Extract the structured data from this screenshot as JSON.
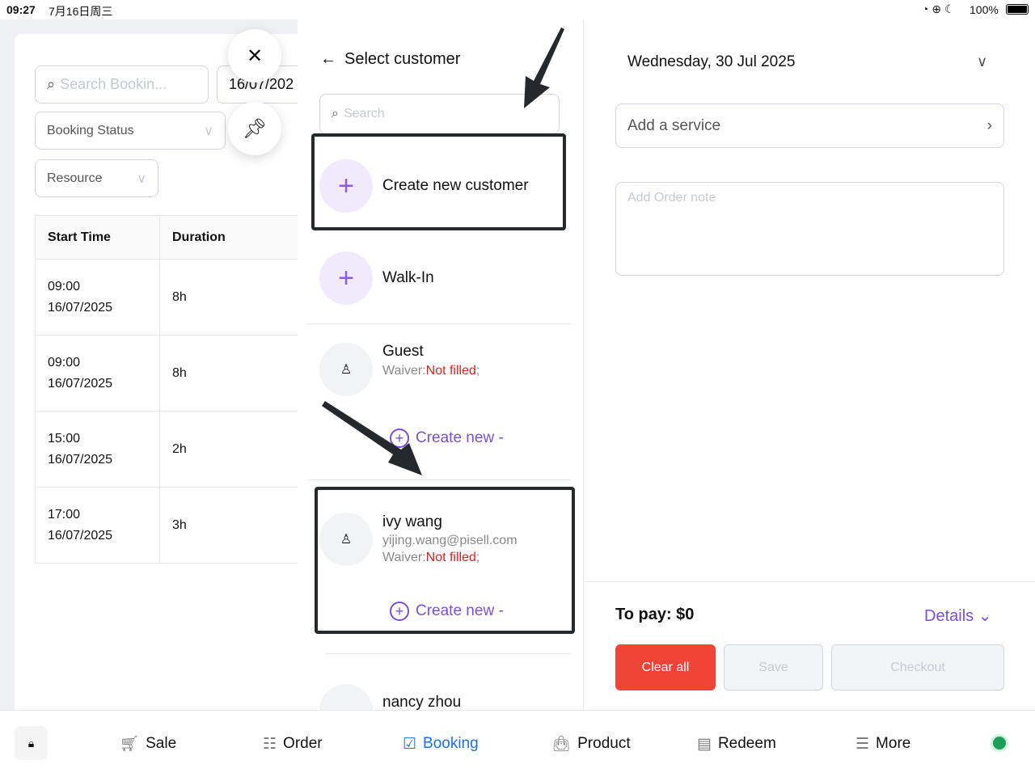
{
  "status_bar": {
    "time": "09:27",
    "date": "7月16日周三",
    "battery": "100%"
  },
  "bookings": {
    "search_placeholder": "Search Bookin...",
    "date_value": "16/07/202",
    "booking_status": "Booking Status",
    "resource": "Resource",
    "columns": [
      "Start Time",
      "Duration"
    ],
    "rows": [
      {
        "time": "09:00",
        "date": "16/07/2025",
        "duration": "8h"
      },
      {
        "time": "09:00",
        "date": "16/07/2025",
        "duration": "8h"
      },
      {
        "time": "15:00",
        "date": "16/07/2025",
        "duration": "2h"
      },
      {
        "time": "17:00",
        "date": "16/07/2025",
        "duration": "3h"
      }
    ]
  },
  "customer": {
    "title": "Select customer",
    "search_placeholder": "Search",
    "create_new_customer": "Create new customer",
    "walk_in": "Walk-In",
    "list": [
      {
        "name": "Guest",
        "email": "",
        "waiver_label": "Waiver:",
        "waiver_status": "Not filled",
        "create": "Create new -"
      },
      {
        "name": "ivy wang",
        "email": "yijing.wang@pisell.com",
        "waiver_label": "Waiver:",
        "waiver_status": "Not filled",
        "create": "Create new -"
      },
      {
        "name": "nancy zhou"
      }
    ]
  },
  "order": {
    "date": "Wednesday, 30 Jul 2025",
    "add_service": "Add a service",
    "note_placeholder": "Add Order note",
    "to_pay": "To pay: $0",
    "details": "Details",
    "clear_all": "Clear all",
    "save": "Save",
    "checkout": "Checkout"
  },
  "nav": {
    "items": [
      "Sale",
      "Order",
      "Booking",
      "Product",
      "Redeem",
      "More"
    ],
    "active": "Booking"
  },
  "colors": {
    "accent": "#7b4fd6",
    "nav_active": "#1a73e8",
    "danger": "#f04438",
    "online": "#1e9e5a"
  }
}
